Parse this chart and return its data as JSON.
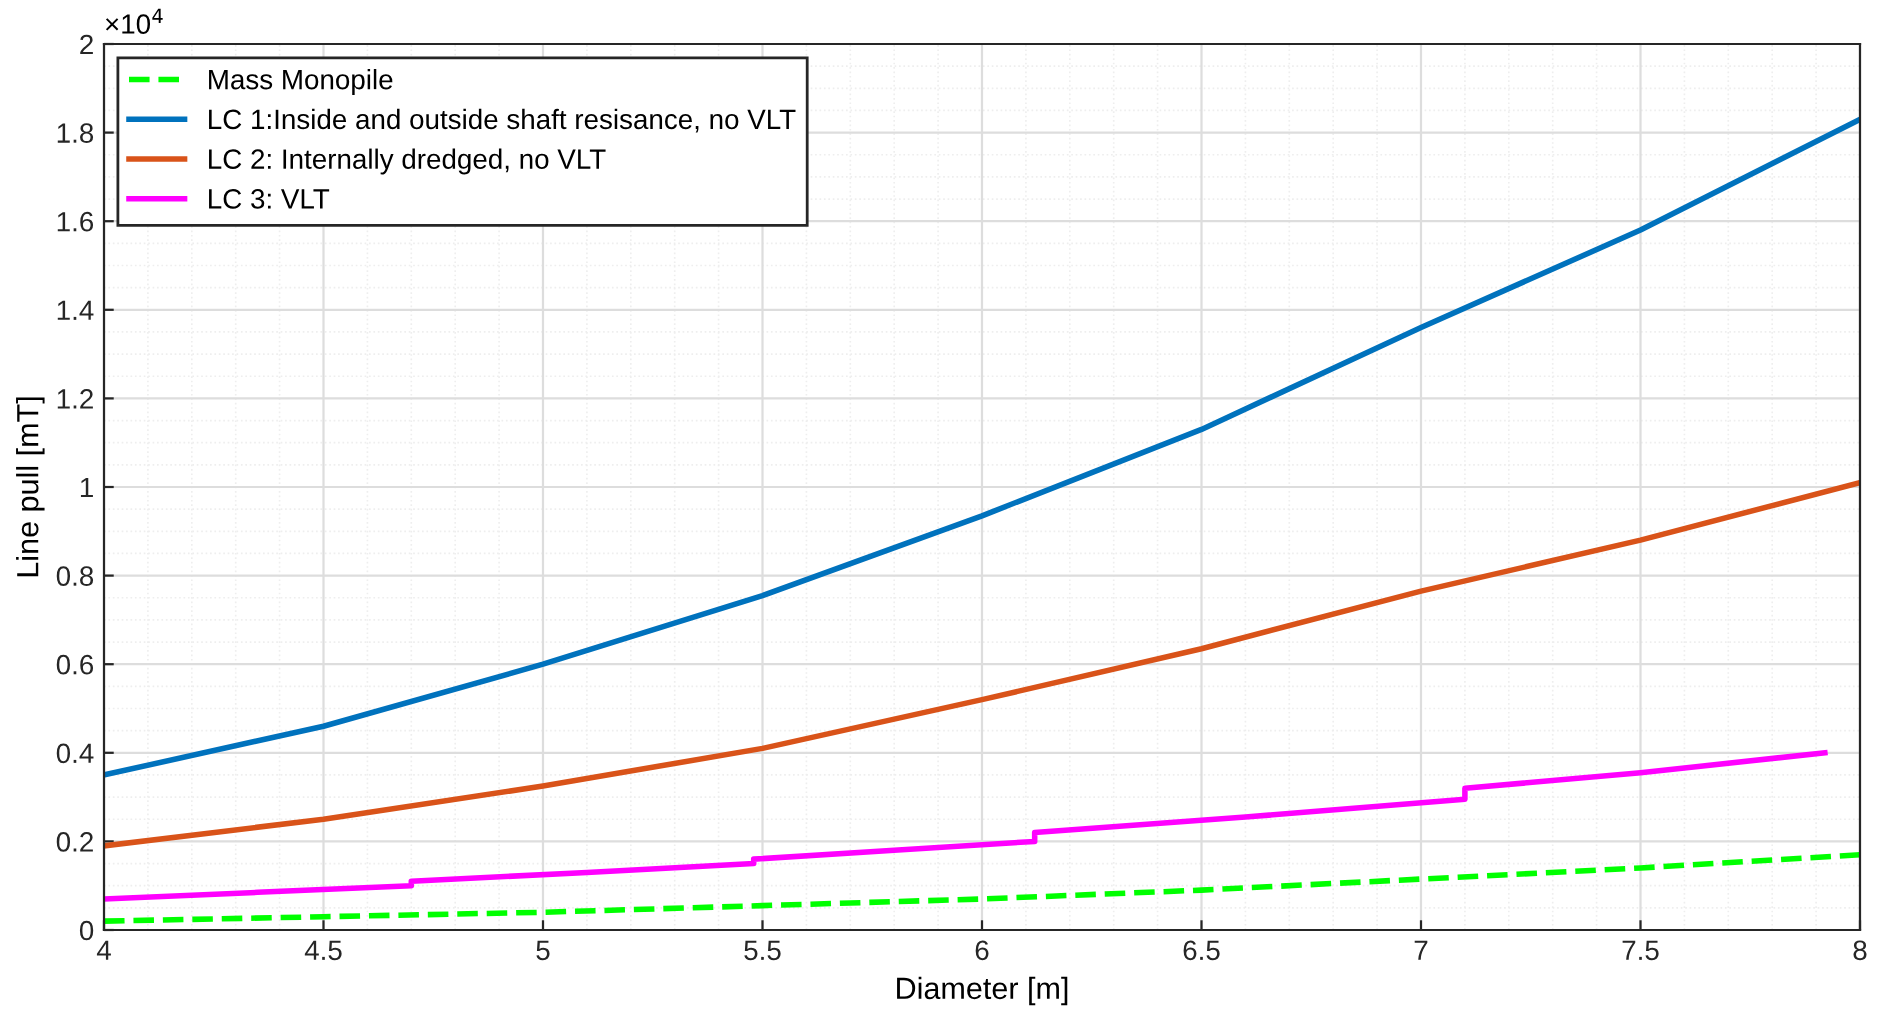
{
  "chart_data": {
    "type": "line",
    "xlabel": "Diameter [m]",
    "ylabel": "Line pull [mT]",
    "annotations": [
      "×10$^{4}$"
    ],
    "xlim": [
      4,
      8
    ],
    "xticks": [
      4,
      4.5,
      5,
      5.5,
      6,
      6.5,
      7,
      7.5,
      8
    ],
    "ylim": [
      0,
      2
    ],
    "yticks": [
      0,
      0.2,
      0.4,
      0.6,
      0.8,
      1,
      1.2,
      1.4,
      1.6,
      1.8,
      2
    ],
    "grid": true,
    "legend": "top left",
    "series": [
      {
        "name": "Mass Monopile",
        "color": "#00ff00",
        "line_style": "dashed",
        "x": [
          4,
          4.5,
          5,
          5.5,
          6,
          6.5,
          7,
          7.5,
          8
        ],
        "values": [
          0.02,
          0.03,
          0.04,
          0.055,
          0.07,
          0.09,
          0.115,
          0.14,
          0.17
        ]
      },
      {
        "name": "LC 1:Inside and outside shaft resisance, no VLT",
        "color": "#0072bd",
        "line_style": "solid",
        "x": [
          4,
          4.5,
          5,
          5.5,
          6,
          6.5,
          7,
          7.5,
          8
        ],
        "values": [
          0.35,
          0.46,
          0.6,
          0.755,
          0.935,
          1.13,
          1.36,
          1.58,
          1.83
        ]
      },
      {
        "name": "LC 2: Internally dredged, no VLT",
        "color": "#d95319",
        "line_style": "solid",
        "x": [
          4,
          4.5,
          5,
          5.5,
          6,
          6.5,
          7,
          7.5,
          8
        ],
        "values": [
          0.19,
          0.25,
          0.325,
          0.41,
          0.52,
          0.635,
          0.765,
          0.88,
          1.01
        ]
      },
      {
        "name": "LC 3: VLT",
        "color": "#ff00ff",
        "line_style": "solid",
        "x": [
          4,
          4.35,
          4.7,
          4.7,
          5.1,
          5.48,
          5.48,
          5.8,
          6.12,
          6.12,
          6.6,
          7.1,
          7.1,
          7.5,
          7.92
        ],
        "values": [
          0.07,
          0.085,
          0.1,
          0.11,
          0.13,
          0.15,
          0.16,
          0.18,
          0.2,
          0.22,
          0.255,
          0.295,
          0.32,
          0.355,
          0.4
        ]
      }
    ]
  }
}
